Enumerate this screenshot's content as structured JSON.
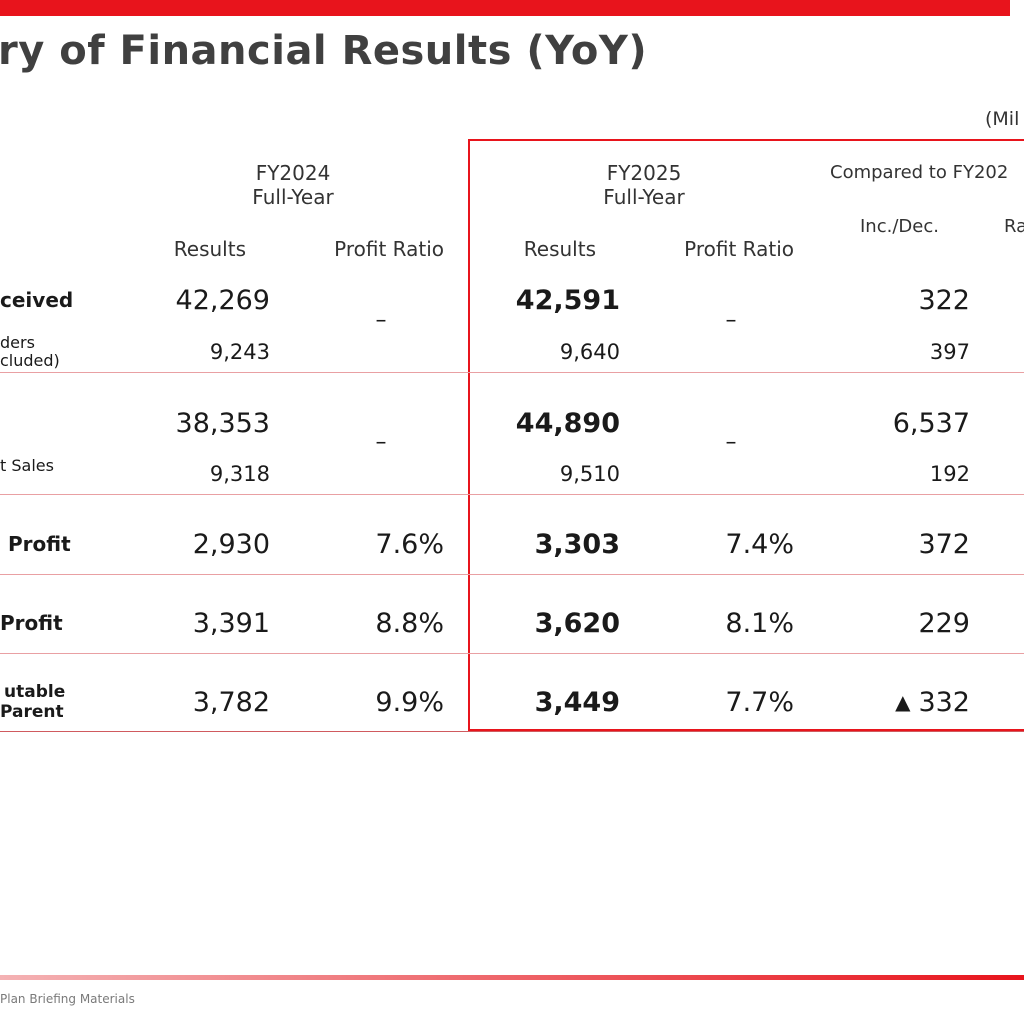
{
  "title": "ry of Financial Results (YoY)",
  "unit_label": "(Mil",
  "footer": "Plan Briefing Materials",
  "colors": {
    "accent": "#e8141c"
  },
  "headers": {
    "fy2024_year": "FY2024",
    "fy2024_period": "Full-Year",
    "fy2025_year": "FY2025",
    "fy2025_period": "Full-Year",
    "compared": "Compared to FY202",
    "results_a": "Results",
    "ratio_a": "Profit Ratio",
    "results_b": "Results",
    "ratio_b": "Profit Ratio",
    "incdec": "Inc./Dec.",
    "rate_partial": "Ra"
  },
  "rows": {
    "orders": {
      "label": "ceived",
      "sub_label_1": "ders",
      "sub_label_2": "cluded)",
      "fy2024": "42,269",
      "fy2024_sub": "9,243",
      "fy2024_ratio": "–",
      "fy2025": "42,591",
      "fy2025_sub": "9,640",
      "fy2025_ratio": "–",
      "incdec": "322",
      "incdec_sub": "397"
    },
    "sales": {
      "sub_label": "t Sales",
      "fy2024": "38,353",
      "fy2024_sub": "9,318",
      "fy2024_ratio": "–",
      "fy2025": "44,890",
      "fy2025_sub": "9,510",
      "fy2025_ratio": "–",
      "incdec": "6,537",
      "incdec_sub": "192"
    },
    "op_profit": {
      "label": "Profit",
      "fy2024": "2,930",
      "fy2024_ratio": "7.6%",
      "fy2025": "3,303",
      "fy2025_ratio": "7.4%",
      "incdec": "372"
    },
    "ord_profit": {
      "label": "Profit",
      "fy2024": "3,391",
      "fy2024_ratio": "8.8%",
      "fy2025": "3,620",
      "fy2025_ratio": "8.1%",
      "incdec": "229"
    },
    "net_profit": {
      "label_1": "utable",
      "label_2": "Parent",
      "fy2024": "3,782",
      "fy2024_ratio": "9.9%",
      "fy2025": "3,449",
      "fy2025_ratio": "7.7%",
      "incdec_marker": "▲",
      "incdec": "332"
    }
  }
}
